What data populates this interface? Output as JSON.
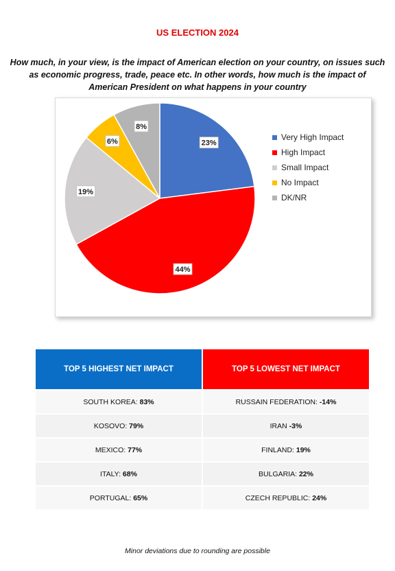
{
  "title": "US ELECTION 2024",
  "question": "How much, in your view, is the impact of American election on your country, on issues such as economic progress, trade, peace etc. In other words, how much is the impact of American President on what happens in your country",
  "chart_data": {
    "type": "pie",
    "title": "",
    "legend_position": "right",
    "slices": [
      {
        "name": "Very High Impact",
        "value": 23,
        "label": "23%",
        "color": "#4472c4"
      },
      {
        "name": "High Impact",
        "value": 44,
        "label": "44%",
        "color": "#ff0000"
      },
      {
        "name": "Small Impact",
        "value": 19,
        "label": "19%",
        "color": "#d0cece"
      },
      {
        "name": "No Impact",
        "value": 6,
        "label": "6%",
        "color": "#ffc000"
      },
      {
        "name": "DK/NR",
        "value": 8,
        "label": "8%",
        "color": "#b4b4b4"
      }
    ]
  },
  "table": {
    "left_header": "TOP 5 HIGHEST NET IMPACT",
    "right_header": "TOP 5 LOWEST NET IMPACT",
    "rows": [
      {
        "left_name": "SOUTH KOREA: ",
        "left_value": "83%",
        "right_name": "RUSSAIN FEDERATION: ",
        "right_value": "-14%"
      },
      {
        "left_name": "KOSOVO: ",
        "left_value": "79%",
        "right_name": "IRAN ",
        "right_value": "-3%"
      },
      {
        "left_name": "MEXICO: ",
        "left_value": "77%",
        "right_name": "FINLAND: ",
        "right_value": "19%"
      },
      {
        "left_name": "ITALY: ",
        "left_value": "68%",
        "right_name": "BULGARIA: ",
        "right_value": "22%"
      },
      {
        "left_name": "PORTUGAL: ",
        "left_value": "65%",
        "right_name": "CZECH REPUBLIC: ",
        "right_value": "24%"
      }
    ]
  },
  "footnote": "Minor deviations due to rounding are possible"
}
